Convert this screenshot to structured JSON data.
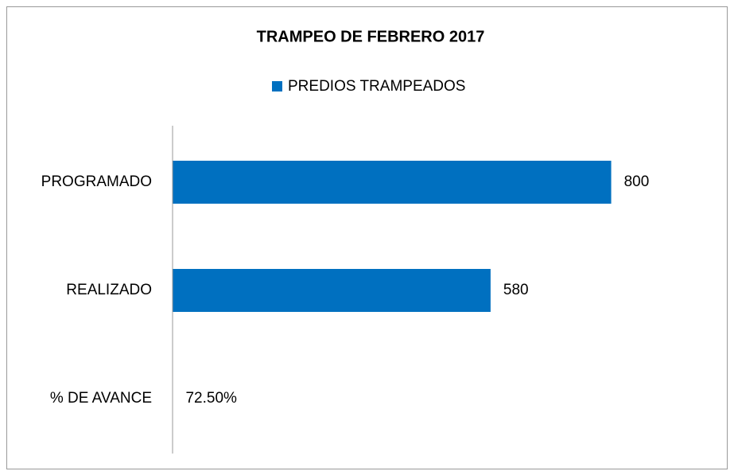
{
  "chart_data": {
    "type": "bar",
    "orientation": "horizontal",
    "title": "TRAMPEO DE FEBRERO 2017",
    "categories": [
      "PROGRAMADO",
      "REALIZADO",
      "% DE AVANCE"
    ],
    "series": [
      {
        "name": "PREDIOS TRAMPEADOS",
        "color": "#0070c0",
        "values": [
          800,
          580,
          0.725
        ],
        "value_labels": [
          "800",
          "580",
          "72.50%"
        ]
      }
    ],
    "xlim": [
      0,
      950
    ],
    "legend": "top"
  }
}
